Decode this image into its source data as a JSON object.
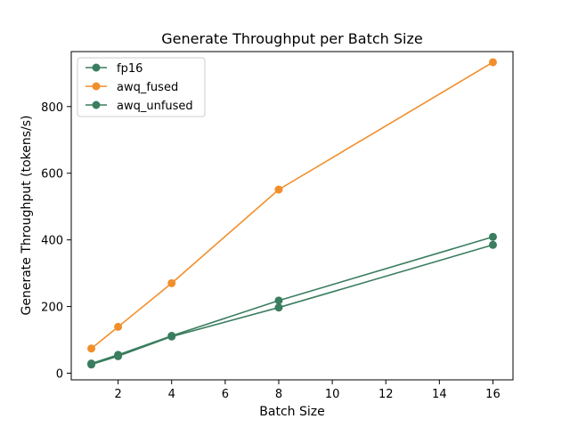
{
  "chart_data": {
    "type": "line",
    "title": "Generate Throughput per Batch Size",
    "xlabel": "Batch Size",
    "ylabel": "Generate Throughput (tokens/s)",
    "xlim": [
      0.25,
      16.75
    ],
    "ylim": [
      -20,
      965
    ],
    "xticks": [
      2,
      4,
      6,
      8,
      10,
      12,
      14,
      16
    ],
    "yticks": [
      0,
      200,
      400,
      600,
      800
    ],
    "grid": false,
    "legend_position": "top-left",
    "x": [
      1,
      2,
      4,
      8,
      16
    ],
    "series": [
      {
        "name": "fp16",
        "color": "#3a7d5f",
        "values": [
          29,
          55,
          112,
          218,
          409
        ]
      },
      {
        "name": "awq_fused",
        "color": "#f28e2b",
        "values": [
          74,
          139,
          270,
          551,
          933
        ]
      },
      {
        "name": "awq_unfused",
        "color": "#3a7d5f",
        "values": [
          26,
          51,
          110,
          197,
          385
        ]
      }
    ]
  }
}
